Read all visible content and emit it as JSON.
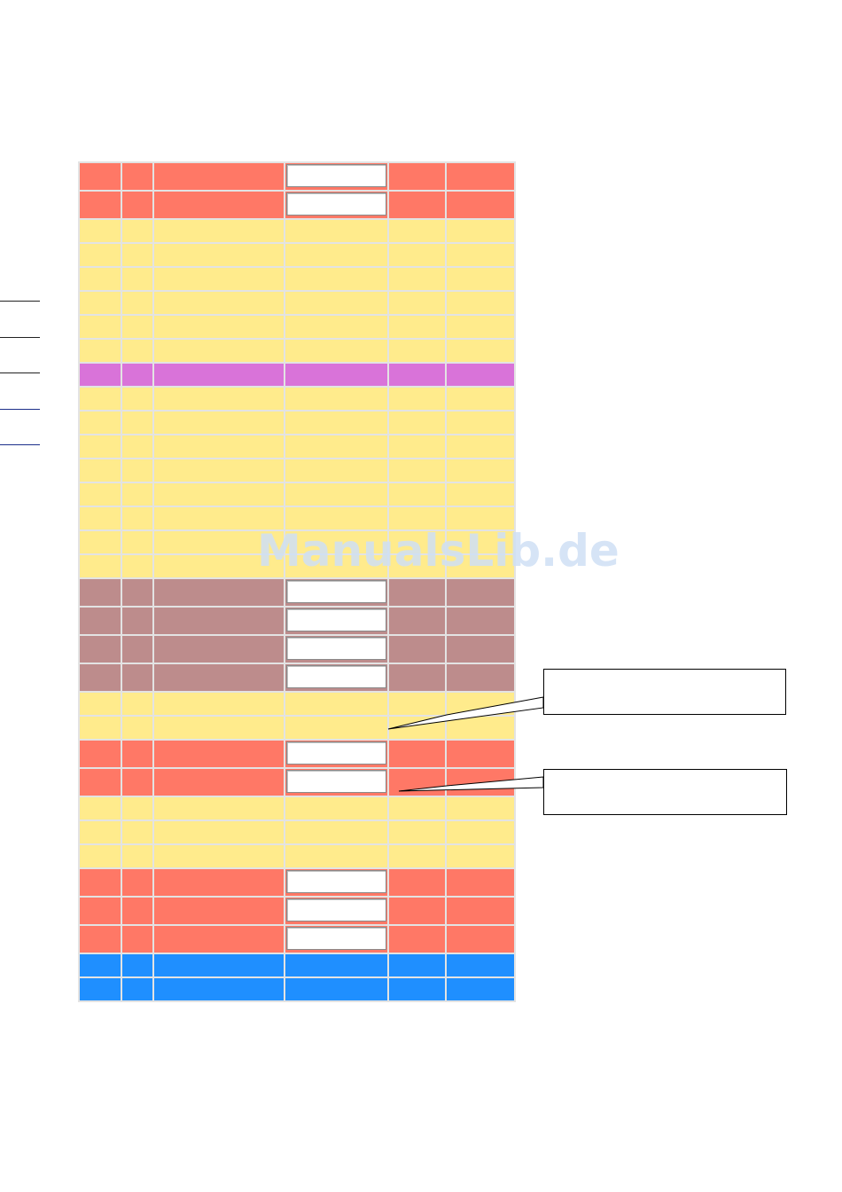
{
  "watermark": {
    "text": "ManualsLib.de"
  },
  "colors": {
    "red": "#ff7866",
    "yellow": "#ffeb8c",
    "purple": "#d973d9",
    "brown": "#bd8c8c",
    "blue": "#1f8fff",
    "cell_border": "#e3e3e3"
  },
  "table": {
    "columns": 6,
    "rows": [
      {
        "color": "red",
        "input": true
      },
      {
        "color": "red",
        "input": true
      },
      {
        "color": "yellow",
        "input": false
      },
      {
        "color": "yellow",
        "input": false
      },
      {
        "color": "yellow",
        "input": false
      },
      {
        "color": "yellow",
        "input": false
      },
      {
        "color": "yellow",
        "input": false
      },
      {
        "color": "yellow",
        "input": false
      },
      {
        "color": "purple",
        "input": false
      },
      {
        "color": "yellow",
        "input": false
      },
      {
        "color": "yellow",
        "input": false
      },
      {
        "color": "yellow",
        "input": false
      },
      {
        "color": "yellow",
        "input": false
      },
      {
        "color": "yellow",
        "input": false
      },
      {
        "color": "yellow",
        "input": false
      },
      {
        "color": "yellow",
        "input": false
      },
      {
        "color": "yellow",
        "input": false
      },
      {
        "color": "brown",
        "input": true
      },
      {
        "color": "brown",
        "input": true
      },
      {
        "color": "brown",
        "input": true
      },
      {
        "color": "brown",
        "input": true
      },
      {
        "color": "yellow",
        "input": false
      },
      {
        "color": "yellow",
        "input": false
      },
      {
        "color": "red",
        "input": true
      },
      {
        "color": "red",
        "input": true
      },
      {
        "color": "yellow",
        "input": false
      },
      {
        "color": "yellow",
        "input": false
      },
      {
        "color": "yellow",
        "input": false
      },
      {
        "color": "red",
        "input": true
      },
      {
        "color": "red",
        "input": true
      },
      {
        "color": "red",
        "input": true
      },
      {
        "color": "blue",
        "input": false
      },
      {
        "color": "blue",
        "input": false
      }
    ]
  },
  "margin_rules": [
    {
      "style": "dark"
    },
    {
      "style": "dark"
    },
    {
      "style": "dark"
    },
    {
      "style": "blue"
    },
    {
      "style": "blue"
    }
  ],
  "callouts": [
    {
      "text": ""
    },
    {
      "text": ""
    }
  ]
}
